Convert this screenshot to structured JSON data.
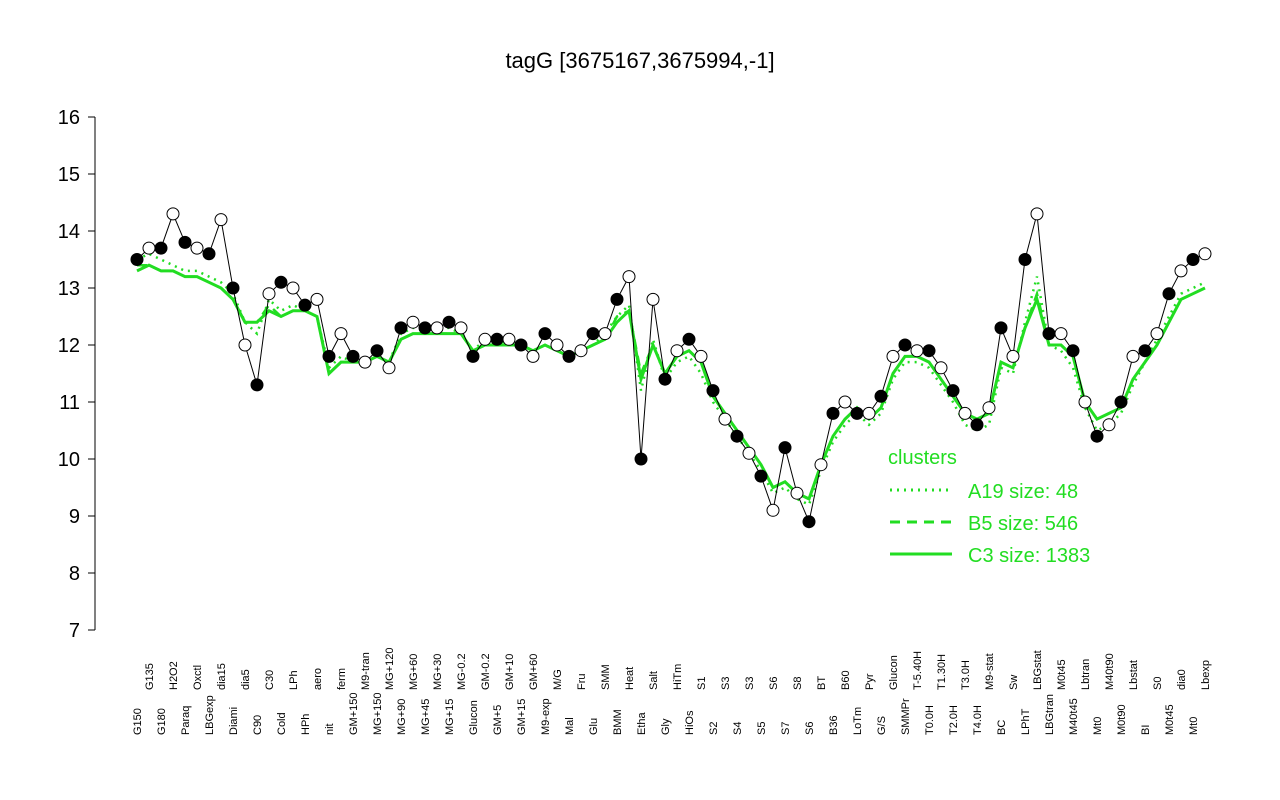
{
  "chart_data": {
    "type": "line",
    "title": "tagG [3675167,3675994,-1]",
    "categories": [
      "G150",
      "G135",
      "G180",
      "H2O2",
      "Paraq",
      "Oxctl",
      "LBGexp",
      "dia15",
      "Diami",
      "dia5",
      "C90",
      "C30",
      "Cold",
      "LPh",
      "HPh",
      "aero",
      "nit",
      "ferm",
      "GM+150",
      "M9-tran",
      "MG+150",
      "MG+120",
      "MG+90",
      "MG+60",
      "MG+45",
      "MG+30",
      "MG+15",
      "MG-0.2",
      "Glucon",
      "GM-0.2",
      "GM+5",
      "GM+10",
      "GM+15",
      "GM+60",
      "M9-exp",
      "M/G",
      "Mal",
      "Fru",
      "Glu",
      "SMM",
      "BMM",
      "Heat",
      "Etha",
      "Salt",
      "Gly",
      "HiTm",
      "HiOs",
      "S1",
      "S2",
      "S3",
      "S4",
      "S3",
      "S5",
      "S6",
      "S7",
      "S8",
      "S6",
      "BT",
      "B36",
      "B60",
      "LoTm",
      "Pyr",
      "G/S",
      "Glucon",
      "SMMPr",
      "T-5.40H",
      "T0.0H",
      "T1.30H",
      "T2.0H",
      "T3.0H",
      "T4.0H",
      "M9-stat",
      "BC",
      "Sw",
      "LPhT",
      "LBGstat",
      "LBGtran",
      "M0t45",
      "M40t45",
      "Lbtran",
      "Mt0",
      "M40t90",
      "M0t90",
      "Lbstat",
      "BI",
      "S0",
      "M0t45",
      "dia0",
      "Mt0",
      "Lbexp"
    ],
    "values": [
      13.5,
      13.7,
      13.7,
      14.3,
      13.8,
      13.7,
      13.6,
      14.2,
      13.0,
      12.0,
      11.3,
      12.9,
      13.1,
      13.0,
      12.7,
      12.8,
      11.8,
      12.2,
      11.8,
      11.7,
      11.9,
      11.6,
      12.3,
      12.4,
      12.3,
      12.3,
      12.4,
      12.3,
      11.8,
      12.1,
      12.1,
      12.1,
      12.0,
      11.8,
      12.2,
      12.0,
      11.8,
      11.9,
      12.2,
      12.2,
      12.8,
      13.2,
      10.0,
      12.8,
      11.4,
      11.9,
      12.1,
      11.8,
      11.2,
      10.7,
      10.4,
      10.1,
      9.7,
      9.1,
      10.2,
      9.4,
      8.9,
      9.9,
      10.8,
      11.0,
      10.8,
      10.8,
      11.1,
      11.8,
      12.0,
      11.9,
      11.9,
      11.6,
      11.2,
      10.8,
      10.6,
      10.9,
      12.3,
      11.8,
      13.5,
      14.3,
      12.2,
      12.2,
      11.9,
      11.0,
      10.4,
      10.6,
      11.0,
      11.8,
      11.9,
      12.2,
      12.9,
      13.3,
      13.5,
      13.6
    ],
    "series": [
      {
        "name": "A19 size: 48",
        "color": "#22dd22",
        "linestyle": "dotted",
        "values": [
          13.5,
          13.6,
          13.5,
          13.4,
          13.3,
          13.3,
          13.2,
          13.1,
          12.9,
          12.4,
          12.2,
          12.8,
          12.6,
          12.7,
          12.6,
          12.5,
          11.6,
          11.8,
          11.7,
          11.7,
          11.8,
          11.7,
          12.2,
          12.3,
          12.3,
          12.3,
          12.3,
          12.2,
          11.9,
          12.1,
          12.1,
          12.0,
          12.0,
          11.9,
          12.0,
          11.9,
          11.8,
          11.9,
          12.0,
          12.2,
          12.5,
          12.7,
          11.2,
          12.1,
          11.4,
          11.7,
          11.8,
          11.5,
          11.0,
          10.7,
          10.4,
          10.1,
          9.8,
          9.4,
          9.5,
          9.3,
          9.2,
          9.8,
          10.3,
          10.6,
          10.8,
          10.6,
          10.8,
          11.4,
          11.7,
          11.7,
          11.6,
          11.3,
          11.0,
          10.6,
          10.5,
          10.6,
          11.6,
          11.5,
          12.4,
          13.2,
          12.0,
          11.9,
          11.6,
          10.9,
          10.5,
          10.6,
          10.8,
          11.3,
          11.7,
          12.1,
          12.5,
          12.9,
          13.0,
          13.1
        ]
      },
      {
        "name": "B5 size: 546",
        "color": "#22dd22",
        "linestyle": "dashed",
        "values": [
          13.4,
          13.4,
          13.3,
          13.3,
          13.2,
          13.2,
          13.1,
          13.0,
          12.8,
          12.4,
          12.4,
          12.7,
          12.5,
          12.6,
          12.6,
          12.5,
          11.5,
          11.7,
          11.7,
          11.7,
          11.8,
          11.7,
          12.1,
          12.2,
          12.2,
          12.2,
          12.2,
          12.2,
          11.9,
          12.0,
          12.0,
          12.0,
          12.0,
          11.9,
          12.0,
          11.9,
          11.8,
          11.9,
          12.0,
          12.1,
          12.5,
          12.6,
          11.5,
          12.0,
          11.5,
          11.8,
          11.9,
          11.7,
          11.1,
          10.8,
          10.5,
          10.2,
          9.9,
          9.5,
          9.6,
          9.4,
          9.3,
          9.9,
          10.4,
          10.7,
          10.9,
          10.7,
          10.9,
          11.5,
          11.8,
          11.8,
          11.7,
          11.4,
          11.1,
          10.8,
          10.7,
          10.8,
          11.7,
          11.6,
          12.3,
          12.9,
          12.0,
          12.0,
          11.8,
          11.0,
          10.7,
          10.8,
          10.9,
          11.4,
          11.7,
          12.0,
          12.4,
          12.8,
          12.9,
          13.0
        ]
      },
      {
        "name": "C3 size: 1383",
        "color": "#22dd22",
        "linestyle": "solid",
        "values": [
          13.3,
          13.4,
          13.3,
          13.3,
          13.2,
          13.2,
          13.1,
          13.0,
          12.8,
          12.4,
          12.4,
          12.6,
          12.5,
          12.6,
          12.6,
          12.5,
          11.5,
          11.7,
          11.7,
          11.7,
          11.8,
          11.7,
          12.1,
          12.2,
          12.2,
          12.2,
          12.2,
          12.2,
          11.9,
          12.0,
          12.0,
          12.0,
          12.0,
          11.9,
          12.0,
          11.9,
          11.8,
          11.9,
          12.0,
          12.1,
          12.4,
          12.6,
          11.4,
          12.0,
          11.5,
          11.8,
          11.9,
          11.7,
          11.1,
          10.8,
          10.5,
          10.2,
          9.9,
          9.5,
          9.6,
          9.4,
          9.3,
          9.9,
          10.4,
          10.7,
          10.9,
          10.7,
          10.9,
          11.5,
          11.8,
          11.8,
          11.7,
          11.4,
          11.1,
          10.8,
          10.7,
          10.8,
          11.7,
          11.6,
          12.3,
          12.8,
          12.0,
          12.0,
          11.8,
          11.0,
          10.7,
          10.8,
          10.9,
          11.4,
          11.7,
          12.0,
          12.4,
          12.8,
          12.9,
          13.0
        ]
      }
    ],
    "legend_title": "clusters",
    "ylim": [
      7,
      16
    ],
    "yticks": [
      7,
      8,
      9,
      10,
      11,
      12,
      13,
      14,
      15,
      16
    ]
  }
}
